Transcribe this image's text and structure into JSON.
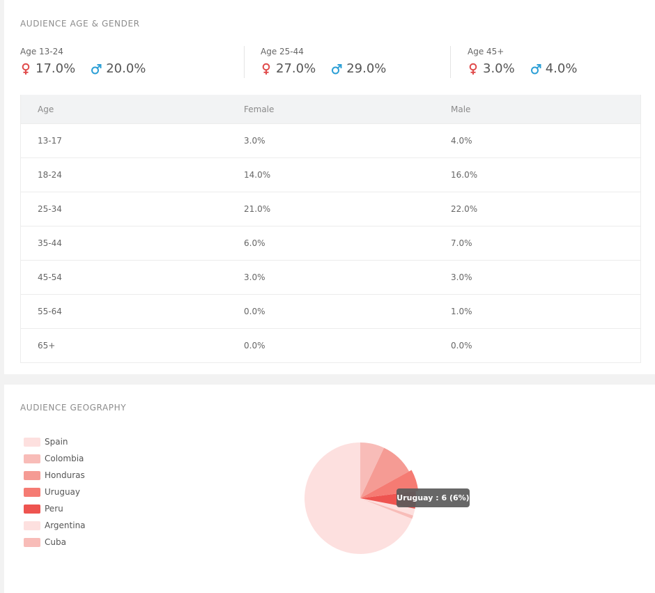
{
  "age_gender": {
    "title": "AUDIENCE AGE & GENDER",
    "groups": [
      {
        "label": "Age 13-24",
        "female": "17.0%",
        "male": "20.0%"
      },
      {
        "label": "Age 25-44",
        "female": "27.0%",
        "male": "29.0%"
      },
      {
        "label": "Age 45+",
        "female": "3.0%",
        "male": "4.0%"
      }
    ],
    "female_color": "#e04b4b",
    "male_color": "#2b9fd6",
    "table": {
      "headers": [
        "Age",
        "Female",
        "Male"
      ],
      "rows": [
        [
          "13-17",
          "3.0%",
          "4.0%"
        ],
        [
          "18-24",
          "14.0%",
          "16.0%"
        ],
        [
          "25-34",
          "21.0%",
          "22.0%"
        ],
        [
          "35-44",
          "6.0%",
          "7.0%"
        ],
        [
          "45-54",
          "3.0%",
          "3.0%"
        ],
        [
          "55-64",
          "0.0%",
          "1.0%"
        ],
        [
          "65+",
          "0.0%",
          "0.0%"
        ]
      ]
    }
  },
  "geography": {
    "title": "AUDIENCE GEOGRAPHY",
    "tooltip": "Uruguay : 6 (6%)"
  },
  "chart_data": {
    "type": "pie",
    "categories": [
      "Spain",
      "Colombia",
      "Honduras",
      "Uruguay",
      "Peru",
      "Argentina",
      "Cuba"
    ],
    "values": [
      69,
      7,
      10,
      6,
      5,
      2,
      1
    ],
    "colors": [
      "#fde0df",
      "#f8bcb8",
      "#f59b94",
      "#f57b73",
      "#ee5450",
      "#fde0df",
      "#f8bcb8"
    ],
    "legend": "left",
    "slice_order": [
      "Spain",
      "Cuba",
      "Argentina",
      "Peru",
      "Uruguay",
      "Honduras",
      "Colombia"
    ],
    "highlight": "Uruguay"
  }
}
